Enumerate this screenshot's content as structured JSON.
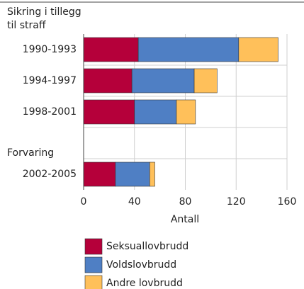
{
  "chart_data": {
    "type": "stacked-barh",
    "annotations": [
      "Sikring i tillegg",
      "til straff",
      "Forvaring"
    ],
    "categories": [
      "1990-1993",
      "1994-1997",
      "1998-2001",
      null,
      "2002-2005"
    ],
    "series": [
      {
        "name": "Seksuallovbrudd",
        "color": "#b5003a",
        "values": [
          43,
          38,
          40,
          null,
          25
        ]
      },
      {
        "name": "Voldslovbrudd",
        "color": "#4f7fc4",
        "values": [
          79,
          49,
          33,
          null,
          27
        ]
      },
      {
        "name": "Andre lovbrudd",
        "color": "#ffc05a",
        "values": [
          31,
          18,
          15,
          null,
          4
        ]
      }
    ],
    "xlabel": "Antall",
    "xlim": [
      0,
      160
    ],
    "xticks": [
      0,
      40,
      80,
      120,
      160
    ],
    "grid": true
  }
}
